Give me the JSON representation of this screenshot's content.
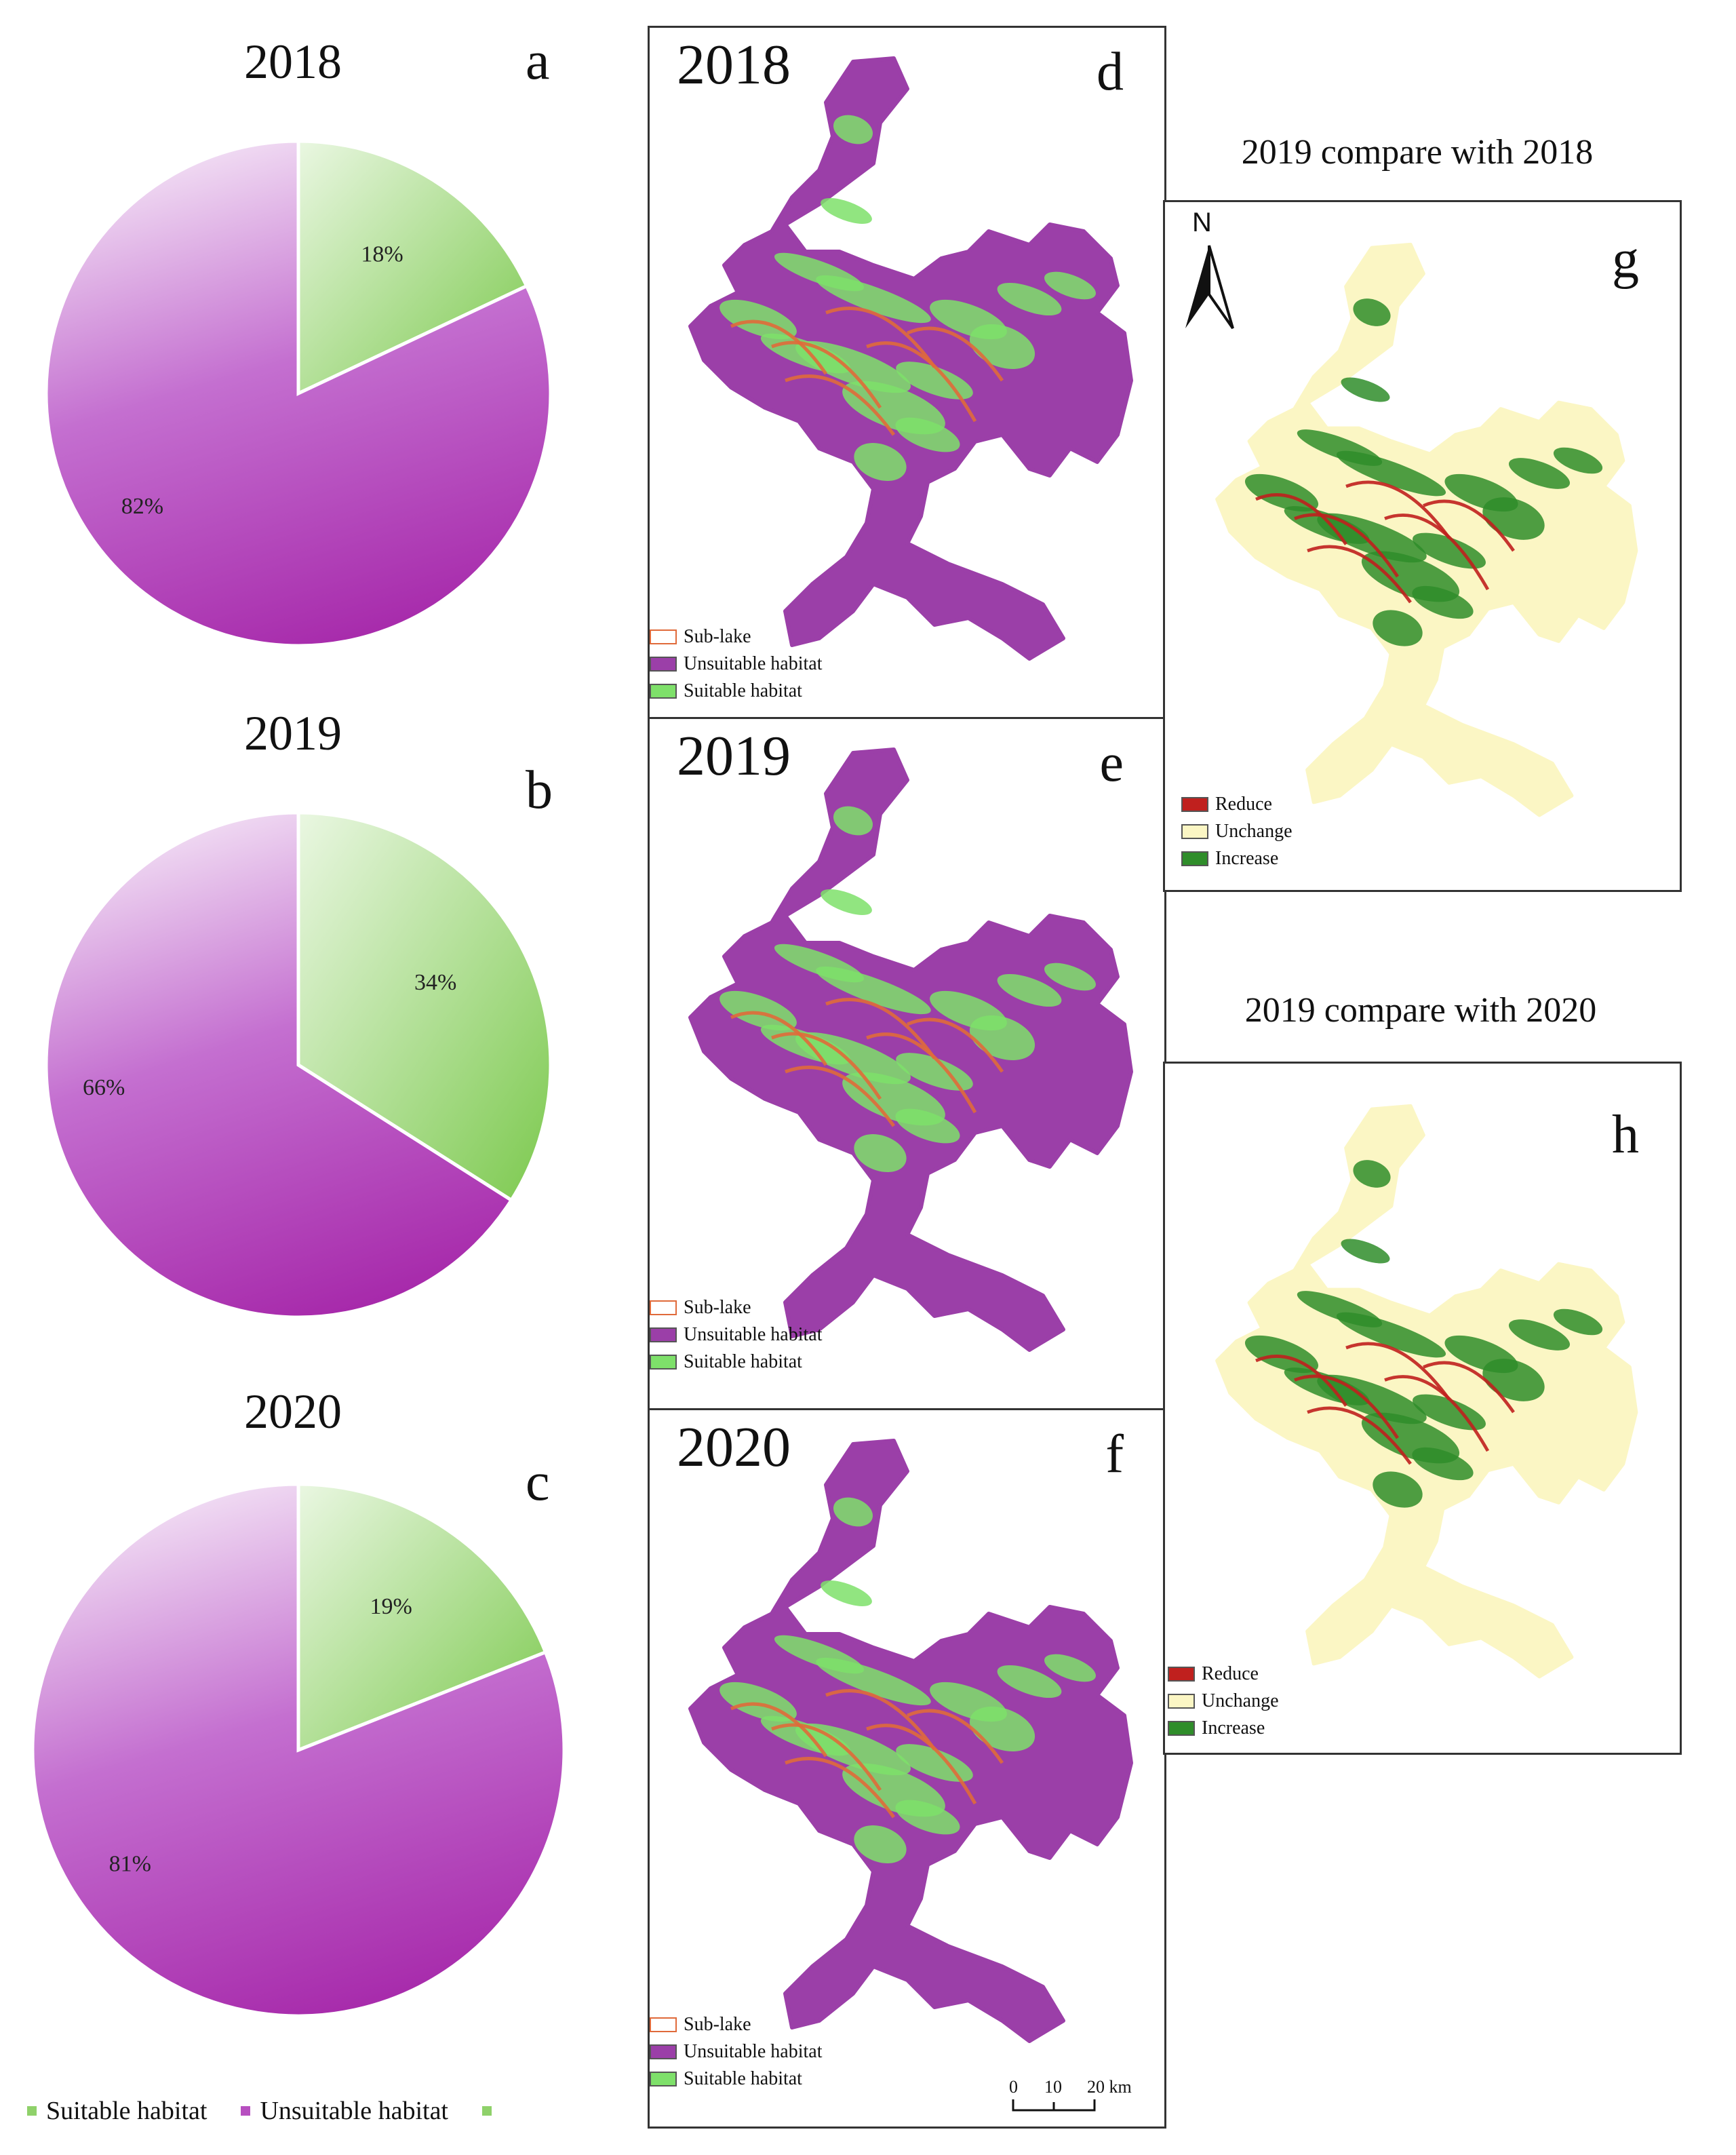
{
  "chart_data": [
    {
      "type": "pie",
      "id": "a",
      "title": "2018",
      "panel": "a",
      "categories": [
        "Suitable habitat",
        "Unsuitable habitat"
      ],
      "values": [
        18,
        82
      ],
      "labels": [
        "18%",
        "82%"
      ]
    },
    {
      "type": "pie",
      "id": "b",
      "title": "2019",
      "panel": "b",
      "categories": [
        "Suitable habitat",
        "Unsuitable habitat"
      ],
      "values": [
        34,
        66
      ],
      "labels": [
        "34%",
        "66%"
      ]
    },
    {
      "type": "pie",
      "id": "c",
      "title": "2020",
      "panel": "c",
      "categories": [
        "Suitable habitat",
        "Unsuitable habitat"
      ],
      "values": [
        19,
        81
      ],
      "labels": [
        "19%",
        "81%"
      ]
    }
  ],
  "colors": {
    "suitable": "#8fd16a",
    "unsuitable": "#b74fc0",
    "suitable_map": "#7ee06a",
    "unsuitable_map": "#9b3fa8",
    "sublake": "#e06a3a",
    "reduce": "#c0201e",
    "unchange": "#fbf6c4",
    "increase": "#2f8d2a"
  },
  "bottom_legend": [
    "Suitable habitat",
    "Unsuitable habitat",
    ""
  ],
  "maps": [
    {
      "year": "2018",
      "panel": "d",
      "legend": [
        "Sub-lake",
        "Unsuitable habitat",
        "Suitable habitat"
      ]
    },
    {
      "year": "2019",
      "panel": "e",
      "legend": [
        "Sub-lake",
        "Unsuitable habitat",
        "Suitable habitat"
      ]
    },
    {
      "year": "2020",
      "panel": "f",
      "legend": [
        "Sub-lake",
        "Unsuitable habitat",
        "Suitable habitat"
      ]
    }
  ],
  "scale_bar": {
    "ticks": [
      "0",
      "10",
      "20 km"
    ]
  },
  "comparisons": [
    {
      "title": "2019 compare with 2018",
      "panel": "g",
      "north": "N",
      "legend": [
        "Reduce",
        "Unchange",
        "Increase"
      ]
    },
    {
      "title": "2019 compare with 2020",
      "panel": "h",
      "legend": [
        "Reduce",
        "Unchange",
        "Increase"
      ]
    }
  ]
}
